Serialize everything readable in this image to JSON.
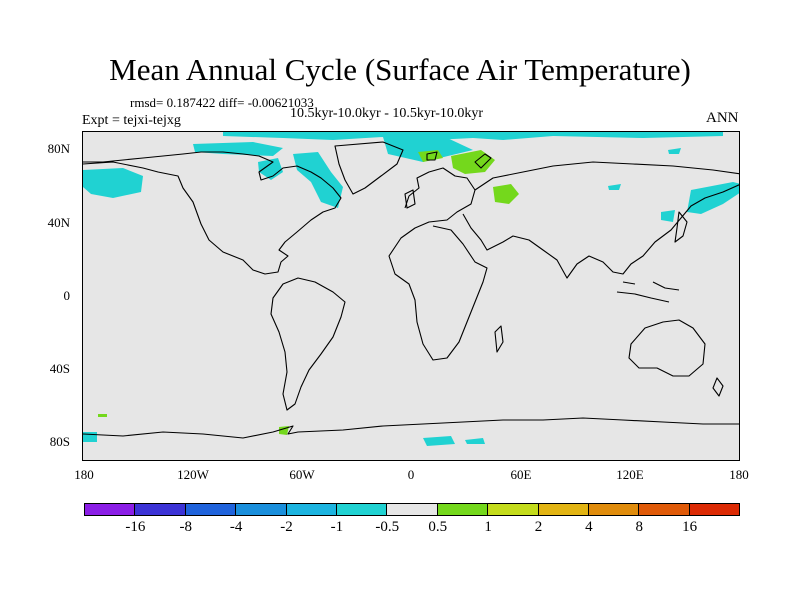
{
  "title": "Mean Annual Cycle (Surface Air Temperature)",
  "stats_line": "rmsd= 0.187422 diff= -0.00621033",
  "subtitle": "10.5kyr-10.0kyr - 10.5kyr-10.0kyr",
  "experiment_label": "Expt = tejxi-tejxg",
  "season_label": "ANN",
  "map": {
    "projection": "cylindrical equidistant",
    "lat_range": [
      -90,
      90
    ],
    "lon_range": [
      -180,
      180
    ],
    "lat_ticks": [
      "80N",
      "40N",
      "0",
      "40S",
      "80S"
    ],
    "lon_ticks": [
      "180",
      "120W",
      "60W",
      "0",
      "60E",
      "120E",
      "180"
    ],
    "background_color": "#e6e6e6"
  },
  "colorbar": {
    "colors": [
      "#8b1ee6",
      "#3c33d6",
      "#1f63dc",
      "#1a8fdc",
      "#1cb4e0",
      "#20d2d2",
      "#e6e6e6",
      "#74d81c",
      "#c4dc1c",
      "#e2b413",
      "#e08c0c",
      "#e05a08",
      "#dc2a04"
    ],
    "labels": [
      "-16",
      "-8",
      "-4",
      "-2",
      "-1",
      "-0.5",
      "0.5",
      "1",
      "2",
      "4",
      "8",
      "16"
    ]
  }
}
